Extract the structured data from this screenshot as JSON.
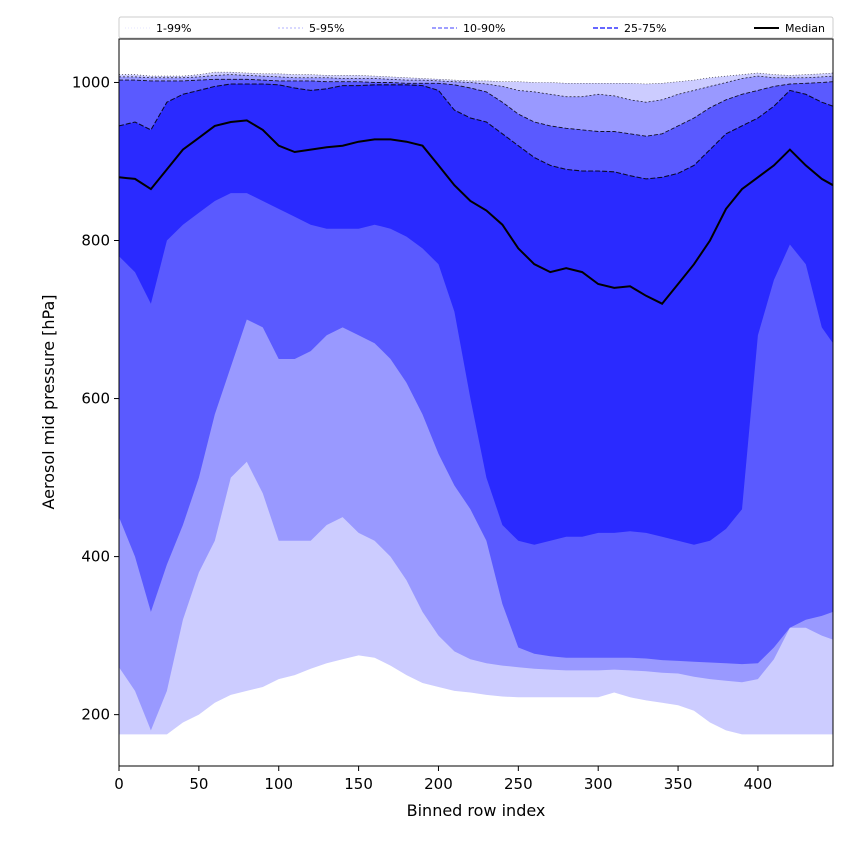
{
  "chart_data": {
    "type": "area",
    "xlabel": "Binned row index",
    "ylabel": "Aerosol mid pressure [hPa]",
    "xlim": [
      0,
      447
    ],
    "ylim": [
      135,
      1055
    ],
    "x_ticks": [
      0,
      50,
      100,
      150,
      200,
      250,
      300,
      350,
      400
    ],
    "y_ticks": [
      200,
      400,
      600,
      800,
      1000
    ],
    "legend_position": "top, above plot",
    "legend": [
      {
        "label": "1-99%",
        "color": "#ccccff",
        "style": "dotted-thin"
      },
      {
        "label": "5-95%",
        "color": "#9999ff",
        "style": "dotted"
      },
      {
        "label": "10-90%",
        "color": "#6666ff",
        "style": "dashed"
      },
      {
        "label": "25-75%",
        "color": "#3333ff",
        "style": "dashed-thick"
      },
      {
        "label": "Median",
        "color": "#000000",
        "style": "solid"
      }
    ],
    "x": [
      0,
      10,
      20,
      30,
      40,
      50,
      60,
      70,
      80,
      90,
      100,
      110,
      120,
      130,
      140,
      150,
      160,
      170,
      180,
      190,
      200,
      210,
      220,
      230,
      240,
      250,
      260,
      270,
      280,
      290,
      300,
      310,
      320,
      330,
      340,
      350,
      360,
      370,
      380,
      390,
      400,
      410,
      420,
      430,
      440,
      447
    ],
    "series": [
      {
        "name": "1-99%",
        "fill": "#ccccff",
        "lower": [
          175,
          175,
          175,
          175,
          190,
          200,
          215,
          225,
          230,
          235,
          245,
          250,
          258,
          265,
          270,
          275,
          272,
          262,
          250,
          240,
          235,
          230,
          228,
          225,
          223,
          222,
          222,
          222,
          222,
          222,
          222,
          228,
          222,
          218,
          215,
          212,
          205,
          190,
          180,
          175,
          175,
          175,
          175,
          175,
          175,
          175
        ],
        "upper": [
          1010,
          1010,
          1008,
          1008,
          1008,
          1010,
          1013,
          1013,
          1012,
          1011,
          1011,
          1010,
          1010,
          1009,
          1009,
          1009,
          1008,
          1007,
          1006,
          1005,
          1004,
          1003,
          1002,
          1002,
          1001,
          1001,
          1000,
          1000,
          999,
          999,
          999,
          999,
          999,
          998,
          999,
          1001,
          1003,
          1006,
          1008,
          1010,
          1012,
          1010,
          1009,
          1010,
          1011,
          1012
        ]
      },
      {
        "name": "5-95%",
        "fill": "#9999ff",
        "lower": [
          260,
          230,
          180,
          230,
          320,
          380,
          420,
          500,
          520,
          480,
          420,
          420,
          420,
          440,
          450,
          430,
          420,
          400,
          370,
          330,
          300,
          280,
          270,
          265,
          262,
          260,
          258,
          257,
          256,
          256,
          256,
          257,
          256,
          255,
          253,
          252,
          248,
          245,
          243,
          241,
          245,
          270,
          310,
          310,
          300,
          295
        ],
        "upper": [
          1007,
          1007,
          1006,
          1006,
          1006,
          1007,
          1009,
          1010,
          1009,
          1008,
          1007,
          1006,
          1006,
          1006,
          1005,
          1005,
          1005,
          1004,
          1003,
          1003,
          1002,
          1001,
          1000,
          998,
          995,
          990,
          988,
          985,
          982,
          982,
          985,
          983,
          978,
          975,
          978,
          985,
          990,
          995,
          1000,
          1005,
          1008,
          1006,
          1006,
          1006,
          1007,
          1008
        ]
      },
      {
        "name": "10-90%",
        "fill": "#5a5aff",
        "lower": [
          450,
          400,
          330,
          390,
          440,
          500,
          580,
          640,
          700,
          690,
          650,
          650,
          660,
          680,
          690,
          680,
          670,
          650,
          620,
          580,
          530,
          490,
          460,
          420,
          340,
          285,
          277,
          274,
          272,
          272,
          272,
          272,
          272,
          271,
          269,
          268,
          267,
          266,
          265,
          264,
          265,
          285,
          310,
          320,
          325,
          330
        ],
        "upper": [
          1003,
          1003,
          1002,
          1002,
          1002,
          1003,
          1004,
          1004,
          1004,
          1003,
          1002,
          1002,
          1002,
          1001,
          1001,
          1001,
          1000,
          1000,
          999,
          999,
          999,
          997,
          993,
          988,
          975,
          960,
          950,
          945,
          942,
          940,
          938,
          938,
          935,
          932,
          935,
          945,
          955,
          968,
          978,
          985,
          990,
          995,
          998,
          999,
          1000,
          1001
        ]
      },
      {
        "name": "25-75%",
        "fill": "#2a2aff",
        "lower": [
          780,
          760,
          720,
          800,
          820,
          835,
          850,
          860,
          860,
          850,
          840,
          830,
          820,
          815,
          815,
          815,
          820,
          815,
          805,
          790,
          770,
          710,
          600,
          500,
          440,
          420,
          415,
          420,
          425,
          425,
          430,
          430,
          432,
          430,
          425,
          420,
          415,
          420,
          435,
          460,
          680,
          750,
          795,
          770,
          690,
          670
        ],
        "upper": [
          945,
          950,
          940,
          975,
          985,
          990,
          995,
          998,
          998,
          998,
          997,
          993,
          990,
          992,
          996,
          996,
          997,
          997,
          997,
          996,
          990,
          965,
          955,
          950,
          935,
          920,
          905,
          895,
          890,
          888,
          888,
          887,
          882,
          878,
          880,
          885,
          895,
          915,
          935,
          945,
          955,
          970,
          990,
          985,
          975,
          970
        ]
      },
      {
        "name": "Median",
        "stroke": "#000000",
        "values": [
          880,
          878,
          865,
          890,
          915,
          930,
          945,
          950,
          952,
          940,
          920,
          912,
          915,
          918,
          920,
          925,
          928,
          928,
          925,
          920,
          895,
          870,
          850,
          838,
          820,
          790,
          770,
          760,
          765,
          760,
          745,
          740,
          742,
          730,
          720,
          745,
          770,
          800,
          840,
          865,
          880,
          895,
          915,
          895,
          878,
          870
        ]
      }
    ]
  }
}
